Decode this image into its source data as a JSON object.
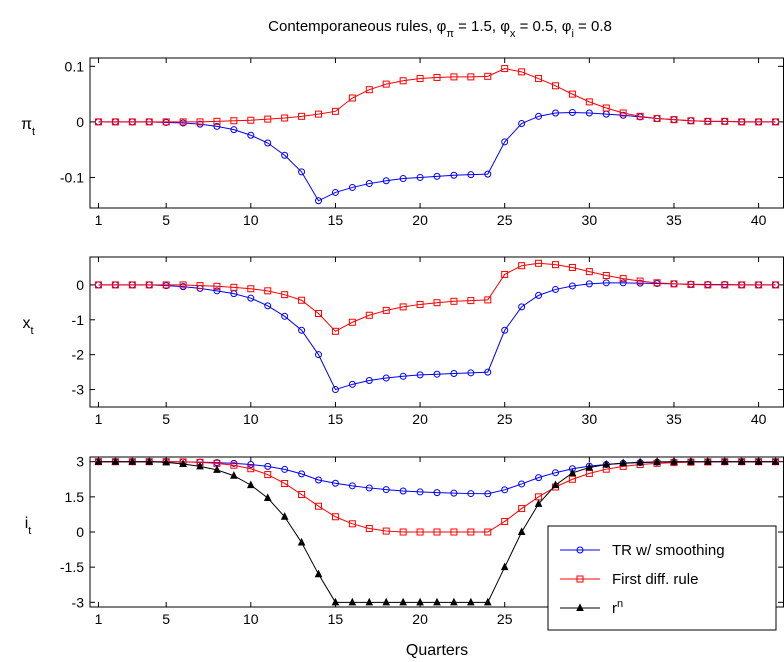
{
  "title": "Contemporaneous rules, φπ = 1.5, φx = 0.5, φi = 0.8",
  "title_parts": [
    {
      "text": "Contemporaneous rules, φ",
      "sub": false
    },
    {
      "text": "π",
      "sub": true
    },
    {
      "text": " = 1.5, φ",
      "sub": false
    },
    {
      "text": "x",
      "sub": true
    },
    {
      "text": " = 0.5, φ",
      "sub": false
    },
    {
      "text": "i",
      "sub": true
    },
    {
      "text": " = 0.8",
      "sub": false
    }
  ],
  "xlabel": "Quarters",
  "colors": {
    "blue": "#0000ff",
    "red": "#ff0000",
    "black": "#000000"
  },
  "chart_data": [
    {
      "type": "line",
      "ylabel": "π",
      "ylabel_sub": "t",
      "xlim": [
        0.5,
        41.5
      ],
      "ylim": [
        -0.155,
        0.115
      ],
      "xticks": [
        1,
        5,
        10,
        15,
        20,
        25,
        30,
        35,
        40
      ],
      "yticks": [
        0.1,
        0,
        -0.1
      ],
      "ytick_labels": [
        "0.1",
        "0",
        "-0.1"
      ],
      "x": [
        1,
        2,
        3,
        4,
        5,
        6,
        7,
        8,
        9,
        10,
        11,
        12,
        13,
        14,
        15,
        16,
        17,
        18,
        19,
        20,
        21,
        22,
        23,
        24,
        25,
        26,
        27,
        28,
        29,
        30,
        31,
        32,
        33,
        34,
        35,
        36,
        37,
        38,
        39,
        40,
        41
      ],
      "series": [
        {
          "color": "#0000ff",
          "marker": "circle",
          "values": [
            0,
            0,
            0,
            0,
            -0.001,
            -0.002,
            -0.004,
            -0.008,
            -0.014,
            -0.024,
            -0.038,
            -0.06,
            -0.09,
            -0.142,
            -0.127,
            -0.118,
            -0.111,
            -0.106,
            -0.102,
            -0.1,
            -0.098,
            -0.096,
            -0.095,
            -0.094,
            -0.036,
            -0.003,
            0.01,
            0.016,
            0.017,
            0.016,
            0.014,
            0.012,
            0.009,
            0.006,
            0.004,
            0.002,
            0.001,
            0.001,
            0,
            0,
            0
          ]
        },
        {
          "color": "#ff0000",
          "marker": "square",
          "values": [
            0,
            0,
            0,
            0,
            0,
            0,
            0,
            0.001,
            0.002,
            0.003,
            0.005,
            0.007,
            0.01,
            0.014,
            0.019,
            0.043,
            0.058,
            0.068,
            0.074,
            0.078,
            0.08,
            0.081,
            0.081,
            0.082,
            0.096,
            0.09,
            0.078,
            0.065,
            0.05,
            0.036,
            0.025,
            0.016,
            0.01,
            0.006,
            0.004,
            0.002,
            0.001,
            0.001,
            0,
            0,
            0
          ]
        }
      ]
    },
    {
      "type": "line",
      "ylabel": "x",
      "ylabel_sub": "t",
      "xlim": [
        0.5,
        41.5
      ],
      "ylim": [
        -3.5,
        0.8
      ],
      "xticks": [
        1,
        5,
        10,
        15,
        20,
        25,
        30,
        35,
        40
      ],
      "yticks": [
        0,
        -1,
        -2,
        -3
      ],
      "ytick_labels": [
        "0",
        "-1",
        "-2",
        "-3"
      ],
      "x": [
        1,
        2,
        3,
        4,
        5,
        6,
        7,
        8,
        9,
        10,
        11,
        12,
        13,
        14,
        15,
        16,
        17,
        18,
        19,
        20,
        21,
        22,
        23,
        24,
        25,
        26,
        27,
        28,
        29,
        30,
        31,
        32,
        33,
        34,
        35,
        36,
        37,
        38,
        39,
        40,
        41
      ],
      "series": [
        {
          "color": "#0000ff",
          "marker": "circle",
          "values": [
            0,
            0,
            0,
            0,
            -0.02,
            -0.05,
            -0.1,
            -0.17,
            -0.25,
            -0.38,
            -0.6,
            -0.9,
            -1.3,
            -2.0,
            -3.0,
            -2.85,
            -2.74,
            -2.67,
            -2.62,
            -2.58,
            -2.56,
            -2.54,
            -2.52,
            -2.5,
            -1.3,
            -0.63,
            -0.3,
            -0.13,
            -0.03,
            0.03,
            0.06,
            0.06,
            0.05,
            0.04,
            0.03,
            0.02,
            0.01,
            0.01,
            0,
            0,
            0
          ]
        },
        {
          "color": "#ff0000",
          "marker": "square",
          "values": [
            0,
            0,
            0,
            0,
            0,
            0,
            -0.02,
            -0.04,
            -0.07,
            -0.11,
            -0.17,
            -0.28,
            -0.44,
            -0.82,
            -1.33,
            -1.07,
            -0.87,
            -0.73,
            -0.63,
            -0.56,
            -0.51,
            -0.47,
            -0.45,
            -0.43,
            0.3,
            0.55,
            0.62,
            0.58,
            0.5,
            0.38,
            0.27,
            0.18,
            0.11,
            0.06,
            0.03,
            0.01,
            0,
            0,
            0,
            0,
            0
          ]
        }
      ]
    },
    {
      "type": "line",
      "ylabel": "i",
      "ylabel_sub": "t",
      "xlim": [
        0.5,
        41.5
      ],
      "ylim": [
        -3.2,
        3.2
      ],
      "xticks": [
        1,
        5,
        10,
        15,
        20,
        25,
        30,
        35,
        40
      ],
      "yticks": [
        3,
        1.5,
        0,
        -1.5,
        -3
      ],
      "ytick_labels": [
        "3",
        "1.5",
        "0",
        "-1.5",
        "-3"
      ],
      "x": [
        1,
        2,
        3,
        4,
        5,
        6,
        7,
        8,
        9,
        10,
        11,
        12,
        13,
        14,
        15,
        16,
        17,
        18,
        19,
        20,
        21,
        22,
        23,
        24,
        25,
        26,
        27,
        28,
        29,
        30,
        31,
        32,
        33,
        34,
        35,
        36,
        37,
        38,
        39,
        40,
        41
      ],
      "legend": {
        "position": "lower-right",
        "entries": [
          {
            "label": "TR w/ smoothing",
            "color": "#0000ff",
            "marker": "circle"
          },
          {
            "label": "First diff. rule",
            "color": "#ff0000",
            "marker": "square"
          },
          {
            "label": "r",
            "label_sup": "n",
            "color": "#000000",
            "marker": "triangle"
          }
        ]
      },
      "series": [
        {
          "color": "#0000ff",
          "marker": "circle",
          "values": [
            3,
            3,
            3,
            3,
            3,
            2.99,
            2.98,
            2.96,
            2.93,
            2.88,
            2.8,
            2.67,
            2.48,
            2.22,
            2.08,
            1.97,
            1.88,
            1.81,
            1.75,
            1.71,
            1.68,
            1.66,
            1.64,
            1.63,
            1.8,
            2.05,
            2.32,
            2.53,
            2.7,
            2.81,
            2.88,
            2.93,
            2.96,
            2.98,
            2.99,
            3,
            3,
            3,
            3,
            3,
            3
          ]
        },
        {
          "color": "#ff0000",
          "marker": "square",
          "values": [
            3,
            3,
            3,
            3,
            3,
            2.99,
            2.97,
            2.93,
            2.85,
            2.7,
            2.45,
            2.07,
            1.6,
            1.1,
            0.65,
            0.35,
            0.15,
            0.04,
            0,
            0,
            0,
            0,
            0,
            0,
            0.45,
            1.0,
            1.5,
            1.92,
            2.25,
            2.5,
            2.68,
            2.8,
            2.88,
            2.93,
            2.96,
            2.98,
            2.99,
            3,
            3,
            3,
            3
          ]
        },
        {
          "color": "#000000",
          "marker": "triangle",
          "values": [
            3,
            3,
            3,
            3,
            2.97,
            2.9,
            2.8,
            2.65,
            2.4,
            2.0,
            1.45,
            0.65,
            -0.45,
            -1.8,
            -3,
            -3,
            -3,
            -3,
            -3,
            -3,
            -3,
            -3,
            -3,
            -3,
            -1.5,
            0,
            1.2,
            2.0,
            2.52,
            2.75,
            2.88,
            2.94,
            2.97,
            2.99,
            3,
            3,
            3,
            3,
            3,
            3,
            3
          ]
        }
      ]
    }
  ]
}
